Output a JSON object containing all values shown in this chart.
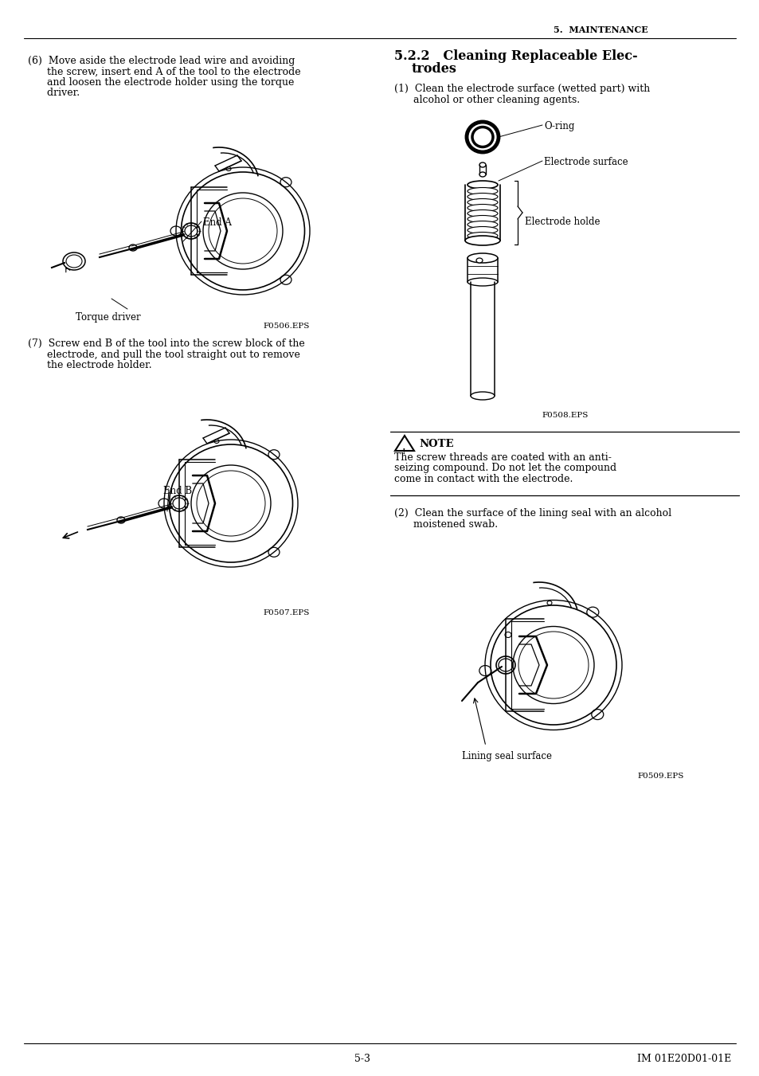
{
  "page_bg": "#ffffff",
  "header_right": "5.  MAINTENANCE",
  "footer_left": "5-3",
  "footer_right": "IM 01E20D01-01E",
  "left_text_6_lines": [
    "(6)  Move aside the electrode lead wire and avoiding",
    "      the screw, insert end A of the tool to the electrode",
    "      and loosen the electrode holder using the torque",
    "      driver."
  ],
  "left_text_7_lines": [
    "(7)  Screw end B of the tool into the screw block of the",
    "      electrode, and pull the tool straight out to remove",
    "      the electrode holder."
  ],
  "right_text_1_lines": [
    "(1)  Clean the electrode surface (wetted part) with",
    "      alcohol or other cleaning agents."
  ],
  "right_text_2_lines": [
    "(2)  Clean the surface of the lining seal with an alcohol",
    "      moistened swab."
  ],
  "section_line1": "5.2.2   Cleaning Replaceable Elec-",
  "section_line2": "         trodes",
  "note_text_lines": [
    "The screw threads are coated with an anti-",
    "seizing compound. Do not let the compound",
    "come in contact with the electrode."
  ],
  "label_oring": "O-ring",
  "label_electrode_surface": "Electrode surface",
  "label_electrode_holder": "Electrode holde",
  "label_end_a": "End A",
  "label_torque_driver": "Torque driver",
  "label_end_b": "End B",
  "label_lining_seal": "Lining seal surface",
  "fig_code_1": "F0506.EPS",
  "fig_code_2": "F0507.EPS",
  "fig_code_3": "F0508.EPS",
  "fig_code_4": "F0509.EPS",
  "note_label": "NOTE"
}
